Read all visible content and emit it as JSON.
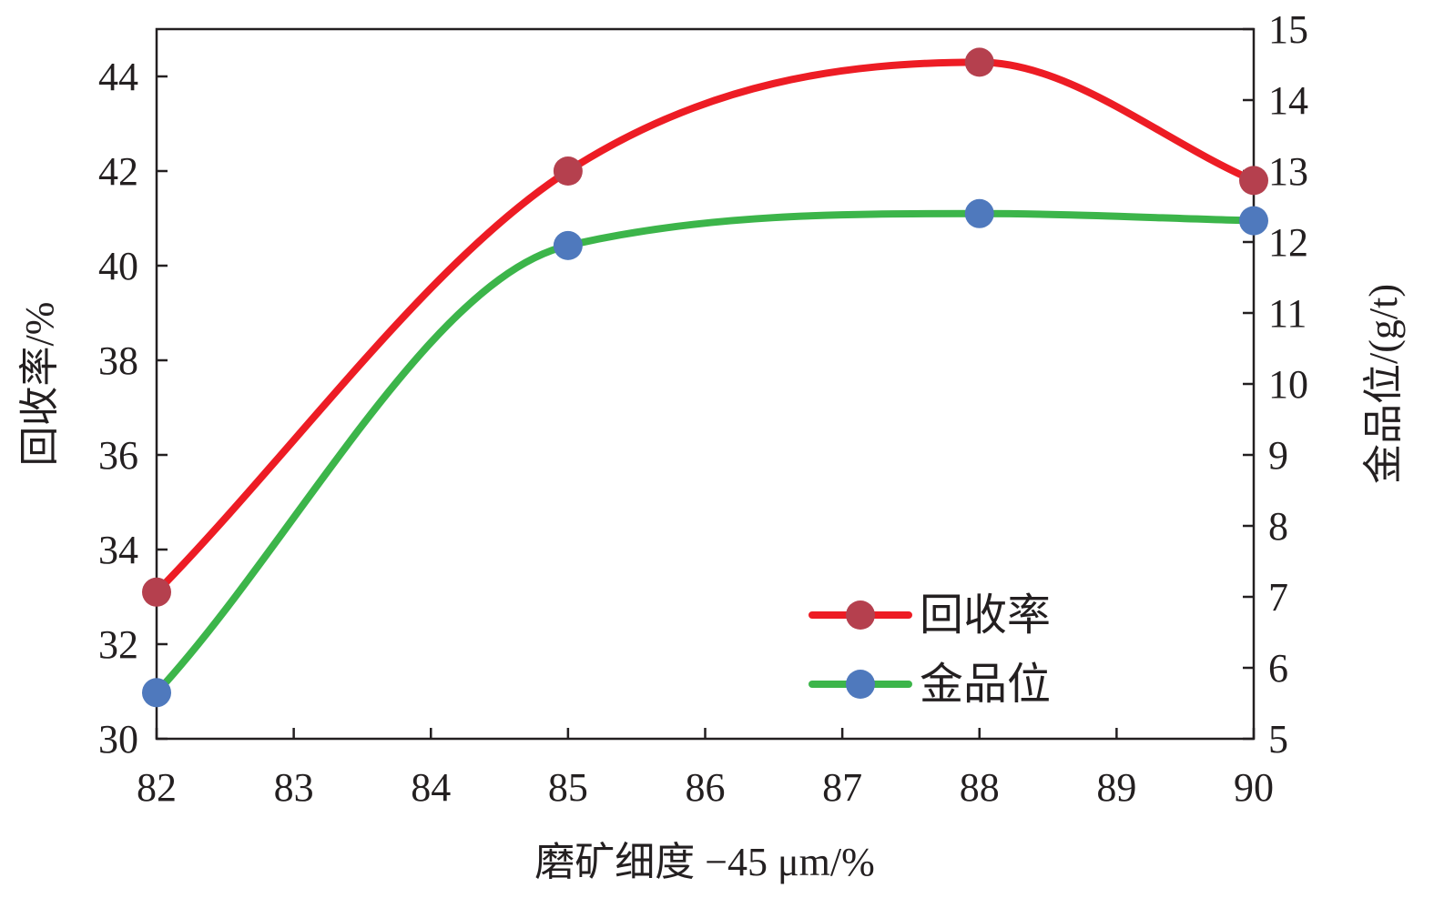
{
  "chart_data": {
    "type": "line",
    "title": "",
    "xlabel": "磨矿细度 −45 μm/%",
    "ylabel_left": "回收率/%",
    "ylabel_right": "金品位/(g/t)",
    "xlim": [
      82,
      90
    ],
    "ylim_left": [
      30,
      45
    ],
    "ylim_right": [
      5,
      15
    ],
    "x_ticks": [
      "82",
      "83",
      "84",
      "85",
      "86",
      "87",
      "88",
      "89",
      "90"
    ],
    "y_ticks_left": [
      "30",
      "32",
      "34",
      "36",
      "38",
      "40",
      "42",
      "44"
    ],
    "y_ticks_right": [
      "5",
      "6",
      "7",
      "8",
      "9",
      "10",
      "11",
      "12",
      "13",
      "14",
      "15"
    ],
    "grid": false,
    "smooth": true,
    "legend_position": "bottom-right",
    "x": [
      82,
      85,
      88,
      90
    ],
    "series": [
      {
        "name": "回收率",
        "axis": "left",
        "values": [
          33.1,
          42.0,
          44.3,
          41.8
        ],
        "line_color": "#ed1c24",
        "marker_color": "#b5404e"
      },
      {
        "name": "金品位",
        "axis": "right",
        "values": [
          5.65,
          11.95,
          12.4,
          12.3
        ],
        "line_color": "#3cb54a",
        "marker_color": "#4f79bd"
      }
    ]
  }
}
